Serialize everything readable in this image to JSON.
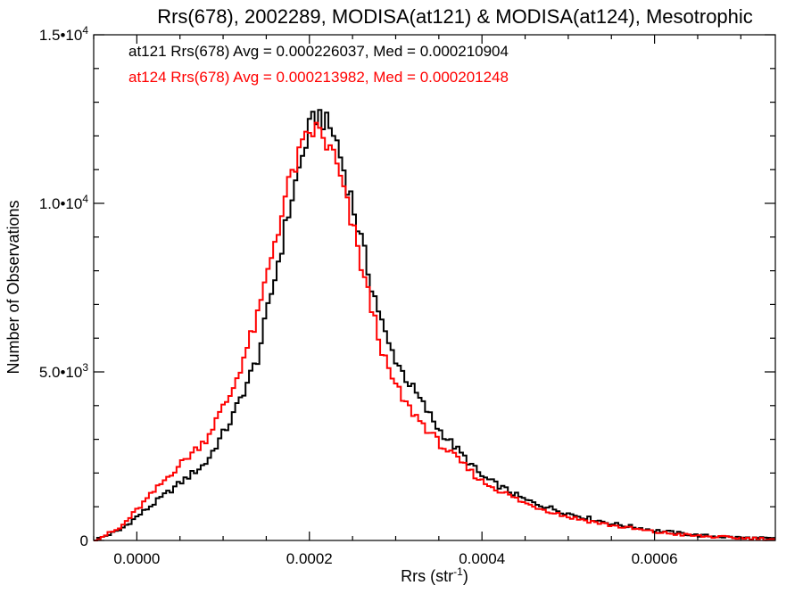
{
  "chart_data": {
    "type": "line",
    "style": "step-histogram",
    "title": "Rrs(678), 2002289, MODISA(at121) & MODISA(at124), Mesotrophic",
    "xlabel": "Rrs (str",
    "xlabel_sup": "-1",
    "xlabel_close": ")",
    "ylabel": "Number of Observations",
    "xlim": [
      -5e-05,
      0.00074
    ],
    "ylim": [
      0,
      15000
    ],
    "x_ticks": [
      {
        "value": 0.0,
        "label": "0.0000"
      },
      {
        "value": 0.0002,
        "label": "0.0002"
      },
      {
        "value": 0.0004,
        "label": "0.0004"
      },
      {
        "value": 0.0006,
        "label": "0.0006"
      }
    ],
    "y_ticks": [
      {
        "value": 0,
        "base": "0",
        "exp": ""
      },
      {
        "value": 5000,
        "base": "5.0•10",
        "exp": "3"
      },
      {
        "value": 10000,
        "base": "1.0•10",
        "exp": "4"
      },
      {
        "value": 15000,
        "base": "1.5•10",
        "exp": "4"
      }
    ],
    "annotations": [
      {
        "text": "at121 Rrs(678) Avg = 0.000226037, Med = 0.000210904",
        "color": "#000000"
      },
      {
        "text": "at124 Rrs(678) Avg = 0.000213982, Med = 0.000201248",
        "color": "#ff0000"
      }
    ],
    "series": [
      {
        "color": "#000000",
        "x": [
          -5e-05,
          -2e-05,
          0.0,
          4e-05,
          8e-05,
          0.00011,
          0.00014,
          0.00016,
          0.00018,
          0.0002,
          0.00021,
          0.00023,
          0.00025,
          0.00027,
          0.00029,
          0.00031,
          0.00035,
          0.0004,
          0.00045,
          0.0005,
          0.00055,
          0.0006,
          0.00065,
          0.0007,
          0.00074
        ],
        "values": [
          0,
          300,
          700,
          1500,
          2300,
          3600,
          5400,
          7800,
          10200,
          12200,
          12700,
          12000,
          10000,
          7800,
          5900,
          4900,
          3300,
          1900,
          1200,
          800,
          500,
          300,
          150,
          80,
          50
        ]
      },
      {
        "color": "#ff0000",
        "x": [
          -5e-05,
          -2e-05,
          0.0,
          4e-05,
          8e-05,
          0.00011,
          0.00014,
          0.00016,
          0.00018,
          0.0002,
          0.00021,
          0.00023,
          0.00025,
          0.00027,
          0.00029,
          0.00031,
          0.00035,
          0.0004,
          0.00045,
          0.0005,
          0.00055,
          0.0006,
          0.00065,
          0.0007,
          0.00074
        ],
        "values": [
          0,
          350,
          900,
          2000,
          3000,
          4400,
          6600,
          8900,
          10900,
          12100,
          12200,
          11300,
          9300,
          7100,
          5100,
          4100,
          2900,
          1750,
          1100,
          700,
          450,
          250,
          130,
          70,
          40
        ]
      }
    ]
  }
}
